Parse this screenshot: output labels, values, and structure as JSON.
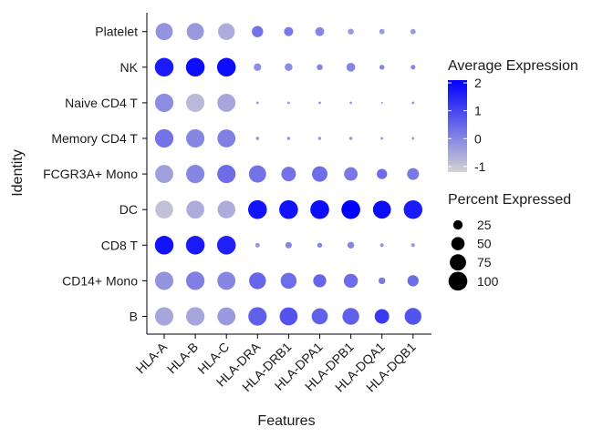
{
  "chart_data": {
    "type": "dotplot",
    "xlabel": "Features",
    "ylabel": "Identity",
    "features": [
      "HLA-A",
      "HLA-B",
      "HLA-C",
      "HLA-DRA",
      "HLA-DRB1",
      "HLA-DPA1",
      "HLA-DPB1",
      "HLA-DQA1",
      "HLA-DQB1"
    ],
    "identities": [
      "B",
      "CD14+ Mono",
      "CD8 T",
      "DC",
      "FCGR3A+ Mono",
      "Memory CD4 T",
      "Naive CD4 T",
      "NK",
      "Platelet"
    ],
    "avg_expression": [
      [
        -0.5,
        -0.5,
        -0.3,
        0.6,
        0.8,
        0.6,
        0.6,
        1.2,
        0.8
      ],
      [
        -0.2,
        0.1,
        0.0,
        0.5,
        0.4,
        0.5,
        0.4,
        0.2,
        0.4
      ],
      [
        1.8,
        1.7,
        1.6,
        -0.3,
        0.0,
        0.0,
        0.0,
        -0.3,
        -0.3
      ],
      [
        -0.9,
        -0.6,
        -0.6,
        1.8,
        1.8,
        1.9,
        2.1,
        1.9,
        1.7
      ],
      [
        -0.4,
        0.0,
        0.4,
        0.3,
        0.3,
        0.4,
        0.2,
        0.4,
        0.2
      ],
      [
        0.3,
        0.0,
        0.1,
        -0.2,
        -0.2,
        -0.3,
        -0.3,
        -0.3,
        -0.3
      ],
      [
        -0.1,
        -0.8,
        -0.5,
        -0.3,
        -0.3,
        -0.3,
        -0.3,
        -0.3,
        -0.3
      ],
      [
        1.7,
        1.9,
        1.9,
        -0.1,
        -0.1,
        0.0,
        0.0,
        0.0,
        0.0
      ],
      [
        -0.2,
        -0.3,
        -0.6,
        0.3,
        0.2,
        0.0,
        -0.3,
        -0.3,
        -0.3
      ]
    ],
    "pct_expressed": [
      [
        96,
        96,
        92,
        96,
        92,
        74,
        80,
        60,
        80
      ],
      [
        95,
        96,
        93,
        80,
        72,
        48,
        56,
        13,
        36
      ],
      [
        99,
        99,
        99,
        6,
        12,
        7,
        13,
        4,
        4
      ],
      [
        91,
        92,
        89,
        100,
        100,
        100,
        100,
        92,
        99
      ],
      [
        93,
        95,
        95,
        84,
        60,
        68,
        52,
        30,
        40
      ],
      [
        97,
        95,
        92,
        3,
        3,
        3,
        3,
        2,
        2
      ],
      [
        96,
        95,
        93,
        2,
        2,
        2,
        2,
        1,
        2
      ],
      [
        99,
        99,
        99,
        16,
        17,
        10,
        22,
        7,
        6
      ],
      [
        84,
        84,
        80,
        36,
        24,
        23,
        10,
        8,
        8
      ]
    ],
    "color_scale": {
      "low": "#d3d3d3",
      "high": "#0000ff",
      "min": -1.2,
      "max": 2.1
    },
    "legend_color": {
      "title": "Average Expression",
      "breaks": [
        2,
        1,
        0,
        -1
      ],
      "labels": [
        "2",
        "1",
        "0",
        "-1"
      ]
    },
    "legend_size": {
      "title": "Percent Expressed",
      "breaks": [
        25,
        50,
        75,
        100
      ],
      "labels": [
        "25",
        "50",
        "75",
        "100"
      ]
    },
    "legend_position": "right",
    "grid": false
  }
}
